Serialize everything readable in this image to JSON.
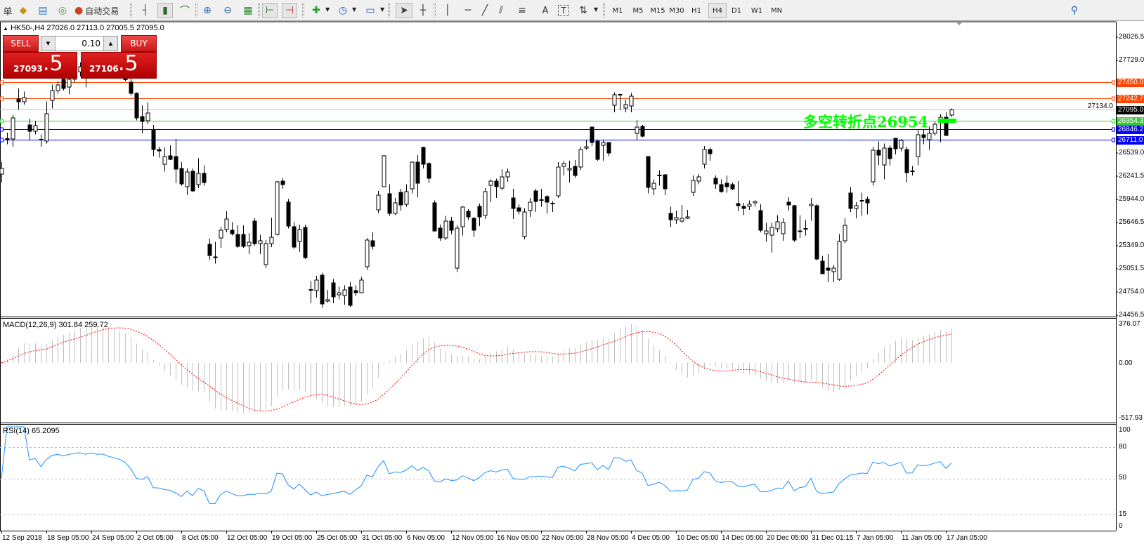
{
  "toolbar": {
    "partial_label": "单",
    "autotrade_label": "自动交易",
    "icons": [
      "gold-bar-icon",
      "market-watch-icon",
      "signal-icon",
      "autotrade-icon",
      "bar-chart-icon",
      "candlestick-icon",
      "line-chart-icon",
      "zoom-in-icon",
      "zoom-out-icon",
      "tile-windows-icon",
      "chart-shift-icon",
      "autoscroll-icon",
      "new-chart-icon",
      "clock-icon",
      "template-icon",
      "cursor-icon",
      "crosshair-icon",
      "vertical-line-icon",
      "horizontal-line-icon",
      "trendline-icon",
      "equidistant-channel-icon",
      "fibonacci-icon",
      "text-icon",
      "text-label-icon",
      "arrows-icon",
      "search-icon"
    ],
    "timeframes": [
      "M1",
      "M5",
      "M15",
      "M30",
      "H1",
      "H4",
      "D1",
      "W1",
      "MN"
    ],
    "active_timeframe": "H4"
  },
  "chart": {
    "symbol_info": "HK50-,H4  27026.0 27113.0 27005.5 27095.0",
    "trade_panel": {
      "sell_label": "SELL",
      "buy_label": "BUY",
      "lot": "0.10",
      "sell_price_main": "27093",
      "sell_price_big": ".5",
      "buy_price_main": "27106",
      "buy_price_big": ".5"
    },
    "annotation": "多空转折点26954",
    "annotation_color": "#00ff00",
    "price_axis": [
      "28026.5",
      "27729.0",
      "27134.0",
      "26539.0",
      "26241.5",
      "25944.0",
      "25646.5",
      "25349.0",
      "25051.5",
      "24754.0",
      "24456.5"
    ],
    "levels": [
      {
        "price": 27450.0,
        "label": "27450.0",
        "color": "#ff4500"
      },
      {
        "price": 27242.7,
        "label": "27242.7",
        "color": "#ff4500"
      },
      {
        "price": 26954.3,
        "label": "26954.3",
        "color": "#32cd32"
      },
      {
        "price": 26846.2,
        "label": "26846.2",
        "color": "#0000ff"
      },
      {
        "price": 26711.0,
        "label": "26711.0",
        "color": "#0000ff"
      }
    ],
    "current_price": {
      "price": 27095.0,
      "label": "27095.0"
    },
    "candles": [
      [
        26268,
        26420,
        26160,
        26340
      ],
      [
        26715,
        26800,
        26650,
        26725
      ],
      [
        26719,
        27030,
        26620,
        26990
      ],
      [
        27233,
        27370,
        27100,
        27197
      ],
      [
        27197,
        27330,
        27160,
        27251
      ],
      [
        26899,
        26980,
        26700,
        26818
      ],
      [
        26818,
        26950,
        26780,
        26890
      ],
      [
        26715,
        26780,
        26620,
        26705
      ],
      [
        26692,
        27200,
        26660,
        27044
      ],
      [
        27215,
        27420,
        27110,
        27341
      ],
      [
        27341,
        27460,
        27300,
        27413
      ],
      [
        27485,
        27520,
        27340,
        27368
      ],
      [
        27386,
        27540,
        27290,
        27485
      ],
      [
        27485,
        27620,
        27450,
        27580
      ],
      [
        27580,
        27700,
        27520,
        27650
      ],
      [
        27650,
        27720,
        27380,
        27600
      ],
      [
        27600,
        27760,
        27580,
        27720
      ],
      [
        27720,
        27800,
        27640,
        27680
      ],
      [
        27680,
        27760,
        27600,
        27700
      ],
      [
        27700,
        27780,
        27620,
        27640
      ],
      [
        27640,
        27700,
        27560,
        27600
      ],
      [
        27600,
        27680,
        27500,
        27560
      ],
      [
        27560,
        27620,
        27460,
        27480
      ],
      [
        27450,
        27500,
        27280,
        27305
      ],
      [
        27305,
        27320,
        26960,
        26990
      ],
      [
        27008,
        27150,
        26790,
        26944
      ],
      [
        26953,
        27190,
        26910,
        27053
      ],
      [
        26836,
        26900,
        26500,
        26584
      ],
      [
        26584,
        26620,
        26480,
        26566
      ],
      [
        26395,
        26610,
        26300,
        26494
      ],
      [
        26503,
        26640,
        26450,
        26458
      ],
      [
        26494,
        26720,
        26150,
        26331
      ],
      [
        26340,
        26420,
        26120,
        26142
      ],
      [
        26106,
        26340,
        26000,
        26295
      ],
      [
        26304,
        26340,
        26040,
        26052
      ],
      [
        26133,
        26470,
        26090,
        26277
      ],
      [
        26277,
        26380,
        26120,
        26160
      ],
      [
        25367,
        25440,
        25170,
        25223
      ],
      [
        25195,
        25400,
        25120,
        25205
      ],
      [
        25448,
        25590,
        25320,
        25547
      ],
      [
        25556,
        25790,
        25520,
        25691
      ],
      [
        25547,
        25650,
        25480,
        25502
      ],
      [
        25493,
        25610,
        25320,
        25340
      ],
      [
        25493,
        25610,
        25320,
        25340
      ],
      [
        25349,
        25510,
        25240,
        25394
      ],
      [
        25664,
        25700,
        25350,
        25376
      ],
      [
        25376,
        25490,
        25240,
        25412
      ],
      [
        25106,
        25420,
        25060,
        25376
      ],
      [
        25376,
        25710,
        25330,
        25457
      ],
      [
        25493,
        26180,
        25480,
        26169
      ],
      [
        26178,
        26220,
        26080,
        26133
      ],
      [
        25908,
        25950,
        25570,
        25601
      ],
      [
        25592,
        25650,
        25310,
        25331
      ],
      [
        25403,
        25620,
        25270,
        25556
      ],
      [
        25583,
        25620,
        25180,
        25196
      ],
      [
        24785,
        24900,
        24610,
        24775
      ],
      [
        24772,
        24960,
        24680,
        24907
      ],
      [
        24970,
        25000,
        24550,
        24601
      ],
      [
        24637,
        24780,
        24620,
        24655
      ],
      [
        24871,
        24920,
        24610,
        24691
      ],
      [
        24718,
        24820,
        24660,
        24745
      ],
      [
        24709,
        24840,
        24590,
        24781
      ],
      [
        24817,
        24880,
        24560,
        24583
      ],
      [
        24772,
        24840,
        24700,
        24745
      ],
      [
        24745,
        24950,
        24740,
        24907
      ],
      [
        25078,
        25450,
        25040,
        25421
      ],
      [
        25412,
        25520,
        25300,
        25340
      ],
      [
        25808,
        26050,
        25770,
        25998
      ],
      [
        26106,
        26510,
        26100,
        26503
      ],
      [
        26016,
        26140,
        25730,
        25763
      ],
      [
        25763,
        25960,
        25740,
        25899
      ],
      [
        26034,
        26080,
        25800,
        25872
      ],
      [
        25881,
        26140,
        25850,
        26043
      ],
      [
        26079,
        26430,
        26020,
        26422
      ],
      [
        26422,
        26510,
        25970,
        26151
      ],
      [
        26611,
        26620,
        26340,
        26395
      ],
      [
        26404,
        26420,
        26150,
        26214
      ],
      [
        25899,
        25930,
        25530,
        25538
      ],
      [
        25574,
        25620,
        25410,
        25448
      ],
      [
        25448,
        25730,
        25420,
        25664
      ],
      [
        25664,
        25720,
        25500,
        25547
      ],
      [
        25060,
        25610,
        25010,
        25574
      ],
      [
        25592,
        25860,
        25480,
        25845
      ],
      [
        25790,
        25820,
        25680,
        25718
      ],
      [
        25700,
        25720,
        25460,
        25547
      ],
      [
        25854,
        25890,
        25600,
        25718
      ],
      [
        25736,
        26090,
        25690,
        26043
      ],
      [
        26124,
        26200,
        25910,
        26178
      ],
      [
        26178,
        26210,
        25960,
        26106
      ],
      [
        26088,
        26330,
        26060,
        26232
      ],
      [
        26232,
        26340,
        26170,
        26295
      ],
      [
        25962,
        26080,
        25690,
        25827
      ],
      [
        25836,
        25880,
        25750,
        25790
      ],
      [
        25466,
        25830,
        25430,
        25781
      ],
      [
        25800,
        25960,
        25720,
        25908
      ],
      [
        26052,
        26080,
        25780,
        25917
      ],
      [
        25940,
        26080,
        25850,
        25930
      ],
      [
        25980,
        26000,
        25760,
        25908
      ],
      [
        25895,
        25920,
        25780,
        25885
      ],
      [
        25989,
        26420,
        25960,
        26359
      ],
      [
        26368,
        26440,
        26250,
        26404
      ],
      [
        26322,
        26440,
        26160,
        26340
      ],
      [
        26368,
        26450,
        26220,
        26250
      ],
      [
        26359,
        26620,
        26320,
        26584
      ],
      [
        26602,
        26710,
        26580,
        26620
      ],
      [
        26872,
        26880,
        26630,
        26674
      ],
      [
        26692,
        26700,
        26440,
        26458
      ],
      [
        26638,
        26710,
        26440,
        26674
      ],
      [
        26674,
        26680,
        26500,
        26539
      ],
      [
        27152,
        27320,
        27060,
        27287
      ],
      [
        27290,
        27300,
        27090,
        27285
      ],
      [
        27116,
        27220,
        27060,
        27161
      ],
      [
        27143,
        27310,
        27060,
        27269
      ],
      [
        26791,
        26960,
        26710,
        26872
      ],
      [
        26881,
        26900,
        26740,
        26755
      ],
      [
        26494,
        26500,
        26020,
        26097
      ],
      [
        26079,
        26200,
        26000,
        26151
      ],
      [
        26255,
        26320,
        26120,
        26245
      ],
      [
        26259,
        26270,
        26000,
        26079
      ],
      [
        25763,
        25850,
        25590,
        25682
      ],
      [
        25682,
        25800,
        25630,
        25709
      ],
      [
        25664,
        25870,
        25640,
        25700
      ],
      [
        25700,
        25810,
        25690,
        25718
      ],
      [
        26034,
        26250,
        25990,
        26187
      ],
      [
        26178,
        26270,
        26140,
        26232
      ],
      [
        26395,
        26630,
        26340,
        26584
      ],
      [
        26584,
        26610,
        26440,
        26530
      ],
      [
        26214,
        26250,
        26080,
        26142
      ],
      [
        26133,
        26200,
        26030,
        26043
      ],
      [
        26151,
        26250,
        26030,
        26106
      ],
      [
        26133,
        26160,
        26060,
        26079
      ],
      [
        25890,
        26180,
        25790,
        25863
      ],
      [
        25854,
        25900,
        25740,
        25827
      ],
      [
        25854,
        25930,
        25810,
        25881
      ],
      [
        25899,
        25930,
        25850,
        25917
      ],
      [
        25800,
        25880,
        25520,
        25547
      ],
      [
        25502,
        25640,
        25400,
        25538
      ],
      [
        25484,
        25640,
        25260,
        25583
      ],
      [
        25565,
        25740,
        25520,
        25655
      ],
      [
        25502,
        25700,
        25410,
        25646
      ],
      [
        25908,
        25970,
        25800,
        25872
      ],
      [
        25863,
        25870,
        25400,
        25421
      ],
      [
        25540,
        25740,
        25450,
        25535
      ],
      [
        25570,
        25680,
        25480,
        25560
      ],
      [
        25863,
        25960,
        25670,
        25881
      ],
      [
        25863,
        25880,
        25160,
        25177
      ],
      [
        25151,
        25220,
        24990,
        24988
      ],
      [
        25060,
        25240,
        24880,
        25033
      ],
      [
        25015,
        25100,
        24880,
        25060
      ],
      [
        24916,
        25500,
        24900,
        25403
      ],
      [
        25412,
        25700,
        25380,
        25610
      ],
      [
        26025,
        26100,
        25780,
        25827
      ],
      [
        25827,
        25910,
        25700,
        25863
      ],
      [
        25930,
        26030,
        25730,
        25920
      ],
      [
        25944,
        25980,
        25750,
        25899
      ],
      [
        26169,
        26620,
        26120,
        26575
      ],
      [
        26575,
        26690,
        26380,
        26512
      ],
      [
        26385,
        26660,
        26200,
        26602
      ],
      [
        26602,
        26640,
        26380,
        26467
      ],
      [
        26728,
        26730,
        26520,
        26593
      ],
      [
        26602,
        26720,
        26560,
        26701
      ],
      [
        26584,
        26620,
        26160,
        26286
      ],
      [
        26310,
        26370,
        26250,
        26300
      ],
      [
        26494,
        26840,
        26380,
        26773
      ],
      [
        26773,
        26840,
        26650,
        26737
      ],
      [
        26710,
        26880,
        26580,
        26791
      ],
      [
        26791,
        26940,
        26760,
        26908
      ],
      [
        26971,
        27040,
        26680,
        26998
      ],
      [
        26998,
        27060,
        26760,
        26764
      ],
      [
        27026,
        27113,
        27005.5,
        27095
      ]
    ],
    "dates": [
      "12 Sep 2018",
      "18 Sep 05:00",
      "24 Sep 05:00",
      "2 Oct 05:00",
      "8 Oct 05:00",
      "12 Oct 05:00",
      "19 Oct 05:00",
      "25 Oct 05:00",
      "31 Oct 05:00",
      "6 Nov 05:00",
      "12 Nov 05:00",
      "16 Nov 05:00",
      "22 Nov 05:00",
      "28 Nov 05:00",
      "4 Dec 05:00",
      "10 Dec 05:00",
      "14 Dec 05:00",
      "20 Dec 05:00",
      "31 Dec 01:15",
      "7 Jan 05:00",
      "11 Jan 05:00",
      "17 Jan 05:00"
    ]
  },
  "macd": {
    "label": "MACD(12,26,9) 301.84 259.72",
    "max_label": "376.07",
    "zero_label": "0.00",
    "min_label": "-517.93",
    "range": [
      -517.93,
      376.07
    ],
    "histogram_color": "#c0c0c0",
    "signal_color": "#ff0000"
  },
  "rsi": {
    "label": "RSI(14) 65.2095",
    "levels": [
      "100",
      "80",
      "50",
      "15",
      "0"
    ],
    "line_color": "#1e90ff"
  }
}
